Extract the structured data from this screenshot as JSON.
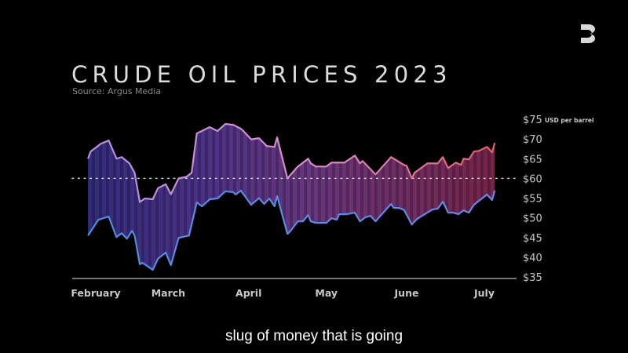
{
  "logo": {
    "icon": "channel-logo-icon",
    "color": "#d8d8d8"
  },
  "caption": "slug of money that is going",
  "chart_data": {
    "type": "area",
    "title": "CRUDE OIL PRICES 2023",
    "subtitle": "Source: Argus Media",
    "ylabel": "USD per barrel",
    "ylim": [
      35,
      75
    ],
    "yticks": [
      "$75",
      "$70",
      "$65",
      "$60",
      "$55",
      "$50",
      "$45",
      "$40",
      "$35"
    ],
    "ytick_values": [
      75,
      70,
      65,
      60,
      55,
      50,
      45,
      40,
      35
    ],
    "xticks": [
      {
        "label": "February",
        "date": "2023-02-01"
      },
      {
        "label": "March",
        "date": "2023-03-01"
      },
      {
        "label": "April",
        "date": "2023-04-01"
      },
      {
        "label": "May",
        "date": "2023-05-01"
      },
      {
        "label": "June",
        "date": "2023-06-01"
      },
      {
        "label": "July",
        "date": "2023-07-01"
      }
    ],
    "reference_line": {
      "value": 60,
      "style": "dotted"
    },
    "grid": false,
    "colors": {
      "upper_left": "#c89ae0",
      "upper_right": "#e06a78",
      "lower": "#5a8de0",
      "band_left": "#4a3a9a",
      "band_right": "#8a3060"
    },
    "series": [
      {
        "values": [
          [
            "2023-01-29",
            65.0
          ],
          [
            "2023-01-30",
            66.8
          ],
          [
            "2023-02-03",
            68.8
          ],
          [
            "2023-02-06",
            69.6
          ],
          [
            "2023-02-09",
            65.0
          ],
          [
            "2023-02-11",
            65.4
          ],
          [
            "2023-02-14",
            63.8
          ],
          [
            "2023-02-16",
            61.4
          ],
          [
            "2023-02-18",
            54.0
          ],
          [
            "2023-02-20",
            54.9
          ],
          [
            "2023-02-23",
            54.7
          ],
          [
            "2023-02-25",
            57.5
          ],
          [
            "2023-02-28",
            58.5
          ],
          [
            "2023-03-02",
            56.0
          ],
          [
            "2023-03-05",
            60.0
          ],
          [
            "2023-03-08",
            60.4
          ],
          [
            "2023-03-10",
            61.4
          ],
          [
            "2023-03-12",
            71.4
          ],
          [
            "2023-03-17",
            73.0
          ],
          [
            "2023-03-20",
            72.0
          ],
          [
            "2023-03-23",
            73.8
          ],
          [
            "2023-03-26",
            73.6
          ],
          [
            "2023-03-29",
            72.6
          ],
          [
            "2023-03-30",
            72.0
          ],
          [
            "2023-04-02",
            69.9
          ],
          [
            "2023-04-05",
            70.2
          ],
          [
            "2023-04-08",
            68.2
          ],
          [
            "2023-04-11",
            68.0
          ],
          [
            "2023-04-12",
            70.4
          ],
          [
            "2023-04-16",
            60.0
          ],
          [
            "2023-04-20",
            63.0
          ],
          [
            "2023-04-24",
            65.0
          ],
          [
            "2023-04-25",
            63.8
          ],
          [
            "2023-04-27",
            63.0
          ],
          [
            "2023-05-01",
            63.0
          ],
          [
            "2023-05-03",
            64.0
          ],
          [
            "2023-05-08",
            64.0
          ],
          [
            "2023-05-12",
            65.8
          ],
          [
            "2023-05-14",
            63.8
          ],
          [
            "2023-05-15",
            64.4
          ],
          [
            "2023-05-20",
            61.0
          ],
          [
            "2023-05-26",
            65.4
          ],
          [
            "2023-05-31",
            63.4
          ],
          [
            "2023-06-01",
            63.2
          ],
          [
            "2023-06-03",
            60.0
          ],
          [
            "2023-06-04",
            61.4
          ],
          [
            "2023-06-09",
            63.8
          ],
          [
            "2023-06-13",
            63.8
          ],
          [
            "2023-06-15",
            65.4
          ],
          [
            "2023-06-17",
            62.6
          ],
          [
            "2023-06-20",
            64.0
          ],
          [
            "2023-06-22",
            63.4
          ],
          [
            "2023-06-23",
            65.0
          ],
          [
            "2023-06-25",
            64.8
          ],
          [
            "2023-06-27",
            66.8
          ],
          [
            "2023-06-29",
            67.0
          ],
          [
            "2023-07-02",
            68.0
          ],
          [
            "2023-07-04",
            66.6
          ],
          [
            "2023-07-05",
            69.0
          ]
        ]
      },
      {
        "values": [
          [
            "2023-01-29",
            45.5
          ],
          [
            "2023-02-02",
            49.5
          ],
          [
            "2023-02-06",
            50.3
          ],
          [
            "2023-02-09",
            45.1
          ],
          [
            "2023-02-11",
            46.1
          ],
          [
            "2023-02-13",
            44.7
          ],
          [
            "2023-02-15",
            46.7
          ],
          [
            "2023-02-16",
            45.5
          ],
          [
            "2023-02-18",
            38.2
          ],
          [
            "2023-02-19",
            38.6
          ],
          [
            "2023-02-23",
            36.8
          ],
          [
            "2023-02-25",
            39.6
          ],
          [
            "2023-02-28",
            41.2
          ],
          [
            "2023-03-02",
            38.0
          ],
          [
            "2023-03-05",
            44.9
          ],
          [
            "2023-03-09",
            45.5
          ],
          [
            "2023-03-12",
            53.9
          ],
          [
            "2023-03-14",
            52.9
          ],
          [
            "2023-03-17",
            54.7
          ],
          [
            "2023-03-20",
            54.9
          ],
          [
            "2023-03-23",
            56.7
          ],
          [
            "2023-03-26",
            56.5
          ],
          [
            "2023-03-27",
            55.9
          ],
          [
            "2023-03-29",
            56.9
          ],
          [
            "2023-04-02",
            53.3
          ],
          [
            "2023-04-05",
            55.0
          ],
          [
            "2023-04-07",
            53.5
          ],
          [
            "2023-04-09",
            54.9
          ],
          [
            "2023-04-11",
            52.9
          ],
          [
            "2023-04-12",
            55.5
          ],
          [
            "2023-04-16",
            45.9
          ],
          [
            "2023-04-17",
            46.5
          ],
          [
            "2023-04-20",
            49.1
          ],
          [
            "2023-04-22",
            49.1
          ],
          [
            "2023-04-24",
            50.7
          ],
          [
            "2023-04-25",
            49.1
          ],
          [
            "2023-04-27",
            48.7
          ],
          [
            "2023-05-01",
            48.7
          ],
          [
            "2023-05-03",
            49.9
          ],
          [
            "2023-05-05",
            49.5
          ],
          [
            "2023-05-06",
            50.9
          ],
          [
            "2023-05-09",
            50.9
          ],
          [
            "2023-05-12",
            51.3
          ],
          [
            "2023-05-14",
            49.1
          ],
          [
            "2023-05-16",
            50.1
          ],
          [
            "2023-05-18",
            50.5
          ],
          [
            "2023-05-20",
            49.1
          ],
          [
            "2023-05-26",
            53.5
          ],
          [
            "2023-05-27",
            52.5
          ],
          [
            "2023-05-29",
            52.5
          ],
          [
            "2023-05-31",
            52.0
          ],
          [
            "2023-06-03",
            48.3
          ],
          [
            "2023-06-05",
            49.7
          ],
          [
            "2023-06-08",
            50.9
          ],
          [
            "2023-06-11",
            52.1
          ],
          [
            "2023-06-13",
            52.3
          ],
          [
            "2023-06-15",
            54.1
          ],
          [
            "2023-06-17",
            51.3
          ],
          [
            "2023-06-19",
            51.3
          ],
          [
            "2023-06-21",
            50.9
          ],
          [
            "2023-06-23",
            51.9
          ],
          [
            "2023-06-25",
            51.3
          ],
          [
            "2023-06-27",
            53.3
          ],
          [
            "2023-07-02",
            55.9
          ],
          [
            "2023-07-04",
            54.5
          ],
          [
            "2023-07-05",
            56.9
          ]
        ]
      }
    ]
  }
}
